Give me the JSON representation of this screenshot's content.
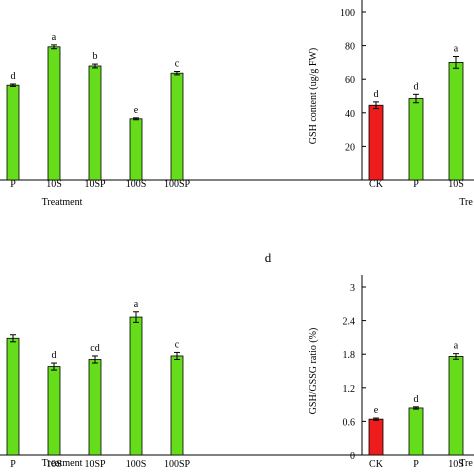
{
  "panel_letter": "d",
  "chart_data": [
    {
      "type": "bar",
      "categories": [
        "P",
        "10S",
        "10SP",
        "100S",
        "100SP"
      ],
      "values": [
        3.95,
        5.55,
        4.75,
        2.55,
        4.45
      ],
      "errors": [
        0.05,
        0.08,
        0.08,
        0.04,
        0.07
      ],
      "letters": [
        "d",
        "a",
        "b",
        "e",
        "c"
      ],
      "colors": [
        "#66dd1a",
        "#66dd1a",
        "#66dd1a",
        "#66dd1a",
        "#66dd1a"
      ],
      "xlabel": "Treatment",
      "ylabel": "",
      "ylim": [
        0,
        7
      ]
    },
    {
      "type": "bar",
      "categories": [
        "CK",
        "P",
        "10S"
      ],
      "values": [
        44.5,
        48.5,
        70
      ],
      "errors": [
        2,
        2.5,
        3.5
      ],
      "letters": [
        "d",
        "d",
        "a"
      ],
      "colors": [
        "#ee1c1c",
        "#66dd1a",
        "#66dd1a"
      ],
      "xlabel": "Tre",
      "ylabel": "GSH content (ug/g FW)",
      "yticks": [
        20,
        40,
        60,
        80,
        100
      ],
      "ylim": [
        0,
        100
      ]
    },
    {
      "type": "bar",
      "categories": [
        "P",
        "10S",
        "10SP",
        "100S",
        "100SP"
      ],
      "values": [
        0.66,
        0.5,
        0.54,
        0.78,
        0.56
      ],
      "errors": [
        0.02,
        0.02,
        0.02,
        0.03,
        0.02
      ],
      "letters": [
        "",
        "d",
        "cd",
        "a",
        "c"
      ],
      "colors": [
        "#66dd1a",
        "#66dd1a",
        "#66dd1a",
        "#66dd1a",
        "#66dd1a"
      ],
      "xlabel": "Treatment",
      "ylabel": "",
      "ylim": [
        0,
        0.95
      ]
    },
    {
      "type": "bar",
      "categories": [
        "CK",
        "P",
        "10S"
      ],
      "values": [
        0.64,
        0.84,
        1.76
      ],
      "errors": [
        0.02,
        0.02,
        0.05
      ],
      "letters": [
        "e",
        "d",
        "a"
      ],
      "colors": [
        "#ee1c1c",
        "#66dd1a",
        "#66dd1a"
      ],
      "xlabel": "Tre",
      "ylabel": "GSH/GSSG ratio (%)",
      "yticks": [
        0,
        0.6,
        1.2,
        1.8,
        2.4,
        3
      ],
      "ylim": [
        0,
        3
      ]
    }
  ]
}
